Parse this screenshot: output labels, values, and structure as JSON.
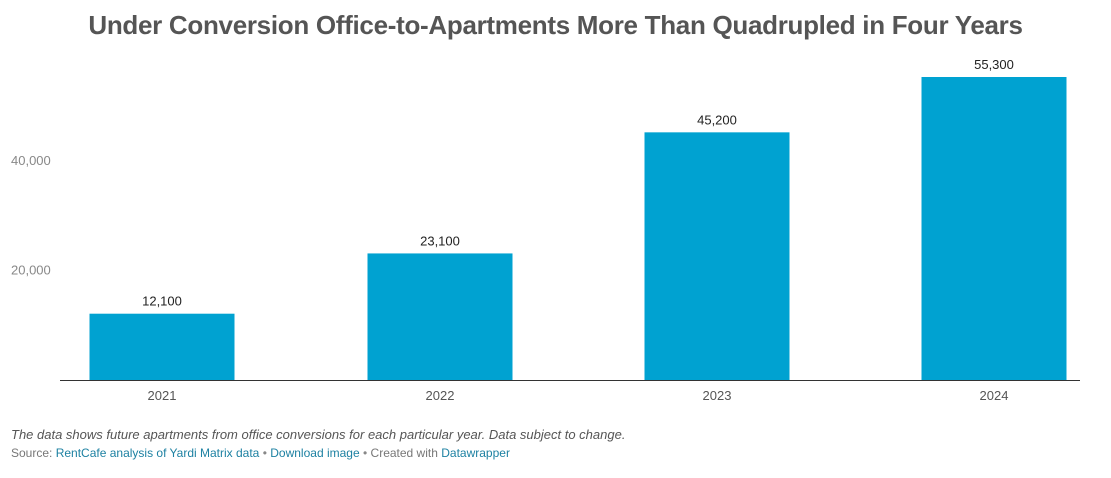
{
  "title": "Under Conversion Office-to-Apartments More Than Quadrupled in Four Years",
  "notes": "The data shows future apartments from office conversions for each particular year. Data subject to change.",
  "footer": {
    "source_label": "Source:",
    "source_link": "RentCafe analysis of Yardi Matrix data",
    "separator": "•",
    "download_link": "Download image",
    "created_with_label": "Created with",
    "datawrapper_link": "Datawrapper"
  },
  "colors": {
    "bar": "#00a2d1",
    "axis": "#333333",
    "tick_label": "#888888",
    "category_label": "#555555",
    "value_label": "#222222"
  },
  "chart_data": {
    "type": "bar",
    "title": "Under Conversion Office-to-Apartments More Than Quadrupled in Four Years",
    "categories": [
      "2021",
      "2022",
      "2023",
      "2024"
    ],
    "values": [
      12100,
      23100,
      45200,
      55300
    ],
    "value_labels": [
      "12,100",
      "23,100",
      "45,200",
      "55,300"
    ],
    "yticks": [
      20000,
      40000
    ],
    "ytick_labels": [
      "20,000",
      "40,000"
    ],
    "ylim": [
      0,
      55300
    ],
    "xlabel": "",
    "ylabel": "",
    "grid": false,
    "legend": "none"
  }
}
